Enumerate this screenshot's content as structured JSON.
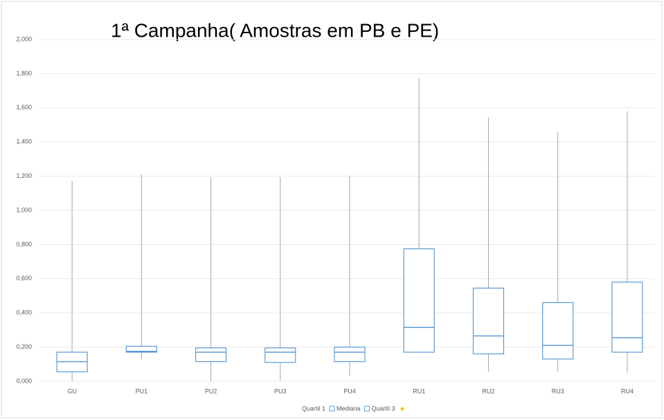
{
  "chart_data": {
    "type": "box",
    "title": "1ª Campanha( Amostras em PB e PE)",
    "categories": [
      "GU",
      "PU1",
      "PU2",
      "PU3",
      "PU4",
      "RU1",
      "RU2",
      "RU3",
      "RU4"
    ],
    "min": [
      0,
      0.13,
      0,
      0.005,
      0.03,
      0.17,
      0.055,
      0.055,
      0.05
    ],
    "q1": [
      0.055,
      0.17,
      0.115,
      0.11,
      0.115,
      0.17,
      0.16,
      0.13,
      0.17
    ],
    "median": [
      0.115,
      0.175,
      0.17,
      0.17,
      0.17,
      0.315,
      0.265,
      0.21,
      0.255
    ],
    "q3": [
      0.17,
      0.205,
      0.195,
      0.195,
      0.2,
      0.775,
      0.545,
      0.46,
      0.58
    ],
    "max": [
      1.17,
      1.21,
      1.195,
      1.195,
      1.2,
      1.775,
      1.545,
      1.46,
      1.58
    ],
    "legend": [
      "Quartil 1",
      "Mediana",
      "Quartil 3"
    ],
    "box_color": "#5b9bd5",
    "whisker_color": "#a5a5a5",
    "ylim": [
      0,
      2
    ],
    "yticks": [
      {
        "value": 0,
        "label": "0,000"
      },
      {
        "value": 0.2,
        "label": "0,200"
      },
      {
        "value": 0.4,
        "label": "0,400"
      },
      {
        "value": 0.6,
        "label": "0,600"
      },
      {
        "value": 0.8,
        "label": "0,800"
      },
      {
        "value": 1,
        "label": "1,000"
      },
      {
        "value": 1.2,
        "label": "1,200"
      },
      {
        "value": 1.4,
        "label": "1,400"
      },
      {
        "value": 1.6,
        "label": "1,600"
      },
      {
        "value": 1.8,
        "label": "1,800"
      },
      {
        "value": 2,
        "label": "2,000"
      }
    ],
    "grid": true
  }
}
